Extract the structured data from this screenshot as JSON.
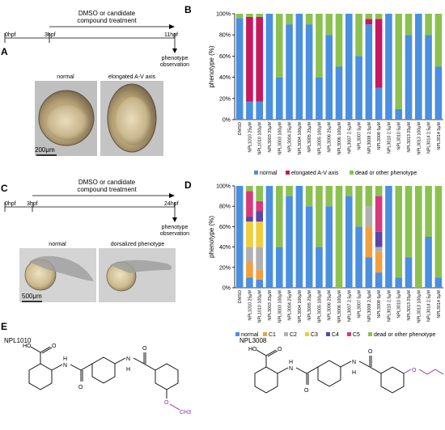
{
  "panels": {
    "a": {
      "letter": "A",
      "t0": "0hpf",
      "t1": "3hpf",
      "t2": "11hpf",
      "treatment_line1": "DMSO or candidate",
      "treatment_line2": "compound treatment",
      "observation_line1": "phenotype",
      "observation_line2": "observation",
      "img1_label": "normal",
      "img2_label": "elongated A-V axis",
      "scale": "200μm"
    },
    "c": {
      "letter": "C",
      "t0": "0hpf",
      "t1": "3hpf",
      "t2": "24hpf",
      "treatment_line1": "DMSO or candidate",
      "treatment_line2": "compound treatment",
      "observation_line1": "phenotype",
      "observation_line2": "observation",
      "img1_label": "normal",
      "img2_label": "dorsalized phenotype",
      "scale": "500μm"
    },
    "e": {
      "letter": "E",
      "compound1": "NPL1010",
      "compound2": "NPL3008",
      "ho": "HO",
      "o": "O",
      "n": "N",
      "h": "H",
      "ch3": "CH3"
    }
  },
  "chart_data": [
    {
      "panel": "B",
      "type": "bar",
      "stacked": true,
      "ylabel": "phenotype (%)",
      "yticks": [
        "0%",
        "20%",
        "40%",
        "60%",
        "80%",
        "100%"
      ],
      "ylim": [
        0,
        100
      ],
      "categories": [
        "DMSO",
        "NPL1010 25μM",
        "NPL1010 100μM",
        "NPL3003 25μM",
        "NPL3003 100μM",
        "NPL3004 25μM",
        "NPL3004 100μM",
        "NPL3005 25μM",
        "NPL3005 100μM",
        "NPL3006 25μM",
        "NPL3006 100μM",
        "NPL3007 2.5μM",
        "NPL3007 5μM",
        "NPL3008 2.5μM",
        "NPL3008 5μM",
        "NPL3010 2.5μM",
        "NPL3010 5μM",
        "NPL3013 25μM",
        "NPL3013 100μM",
        "NPL3014 2.5μM",
        "NPL3014 5μM"
      ],
      "series": [
        {
          "name": "normal",
          "color": "#4a8fe0",
          "values": [
            96,
            17,
            17,
            100,
            40,
            90,
            100,
            90,
            40,
            80,
            50,
            100,
            60,
            90,
            30,
            100,
            10,
            80,
            100,
            80,
            50
          ]
        },
        {
          "name": "elongated A-V axis",
          "color": "#c6185f",
          "values": [
            0,
            80,
            80,
            0,
            0,
            0,
            0,
            0,
            0,
            0,
            0,
            0,
            0,
            5,
            65,
            0,
            0,
            0,
            0,
            0,
            0
          ]
        },
        {
          "name": "dead or other phenotype",
          "color": "#8cc152",
          "values": [
            4,
            3,
            3,
            0,
            60,
            10,
            0,
            10,
            60,
            20,
            50,
            0,
            40,
            5,
            5,
            0,
            90,
            20,
            0,
            20,
            50
          ]
        }
      ],
      "legend_position": "bottom"
    },
    {
      "panel": "D",
      "type": "bar",
      "stacked": true,
      "ylabel": "phenotype (%)",
      "yticks": [
        "0%",
        "20%",
        "40%",
        "60%",
        "80%",
        "100%"
      ],
      "ylim": [
        0,
        100
      ],
      "categories": [
        "DMSO",
        "NPL1010 25μM",
        "NPL1010 100μM",
        "NPL3003 25μM",
        "NPL3003 100μM",
        "NPL3004 25μM",
        "NPL3004 100μM",
        "NPL3005 25μM",
        "NPL3005 100μM",
        "NPL3006 25μM",
        "NPL3006 100μM",
        "NPL3007 2.5μM",
        "NPL3007 5μM",
        "NPL3008 2.5μM",
        "NPL3008 5μM",
        "NPL3010 2.5μM",
        "NPL3010 5μM",
        "NPL3013 25μM",
        "NPL3013 100μM",
        "NPL3014 2.5μM",
        "NPL3014 5μM"
      ],
      "series": [
        {
          "name": "normal",
          "color": "#4a8fe0",
          "values": [
            100,
            10,
            8,
            100,
            40,
            90,
            100,
            80,
            40,
            80,
            0,
            90,
            60,
            30,
            15,
            100,
            10,
            30,
            0,
            50,
            10
          ]
        },
        {
          "name": "C1",
          "color": "#f0a040",
          "values": [
            0,
            15,
            10,
            0,
            0,
            0,
            0,
            0,
            0,
            0,
            0,
            0,
            0,
            30,
            20,
            0,
            0,
            0,
            0,
            0,
            0
          ]
        },
        {
          "name": "C2",
          "color": "#b0b0b0",
          "values": [
            0,
            15,
            22,
            0,
            0,
            0,
            0,
            0,
            0,
            0,
            0,
            0,
            0,
            20,
            5,
            0,
            0,
            0,
            0,
            0,
            0
          ]
        },
        {
          "name": "C3",
          "color": "#f2cd3c",
          "values": [
            0,
            25,
            25,
            0,
            0,
            0,
            0,
            0,
            0,
            0,
            0,
            0,
            0,
            0,
            0,
            0,
            0,
            0,
            0,
            0,
            0
          ]
        },
        {
          "name": "C4",
          "color": "#5b45a8",
          "values": [
            0,
            5,
            10,
            0,
            0,
            0,
            0,
            0,
            0,
            0,
            0,
            0,
            0,
            0,
            15,
            0,
            0,
            0,
            0,
            0,
            0
          ]
        },
        {
          "name": "C5",
          "color": "#d63a7a",
          "values": [
            0,
            25,
            10,
            0,
            0,
            0,
            0,
            0,
            0,
            0,
            0,
            0,
            0,
            0,
            35,
            0,
            0,
            0,
            0,
            0,
            0
          ]
        },
        {
          "name": "dead or other phenotype",
          "color": "#8cc152",
          "values": [
            0,
            5,
            15,
            0,
            60,
            10,
            0,
            20,
            60,
            20,
            100,
            10,
            40,
            20,
            10,
            0,
            90,
            70,
            100,
            50,
            90
          ]
        }
      ],
      "legend_position": "bottom"
    }
  ]
}
